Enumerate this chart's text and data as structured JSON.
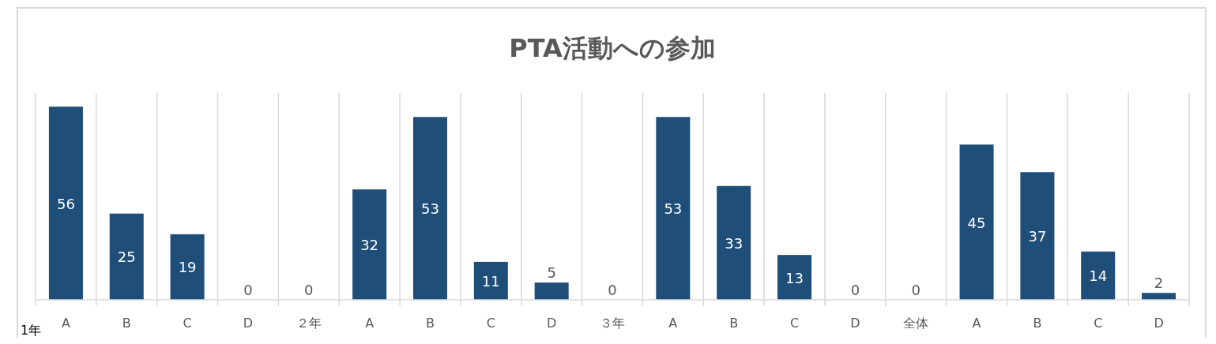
{
  "chart_data": {
    "type": "bar",
    "title": "PTA活動への参加",
    "categories": [
      "A",
      "B",
      "C",
      "D",
      "２年",
      "A",
      "B",
      "C",
      "D",
      "３年",
      "A",
      "B",
      "C",
      "D",
      "全体",
      "A",
      "B",
      "C",
      "D"
    ],
    "values": [
      56,
      25,
      19,
      0,
      0,
      32,
      53,
      11,
      5,
      0,
      53,
      33,
      13,
      0,
      0,
      45,
      37,
      14,
      2
    ],
    "color": "#1f4e79",
    "data_labels": true,
    "grid": "x",
    "annotations": [
      "1年"
    ]
  }
}
